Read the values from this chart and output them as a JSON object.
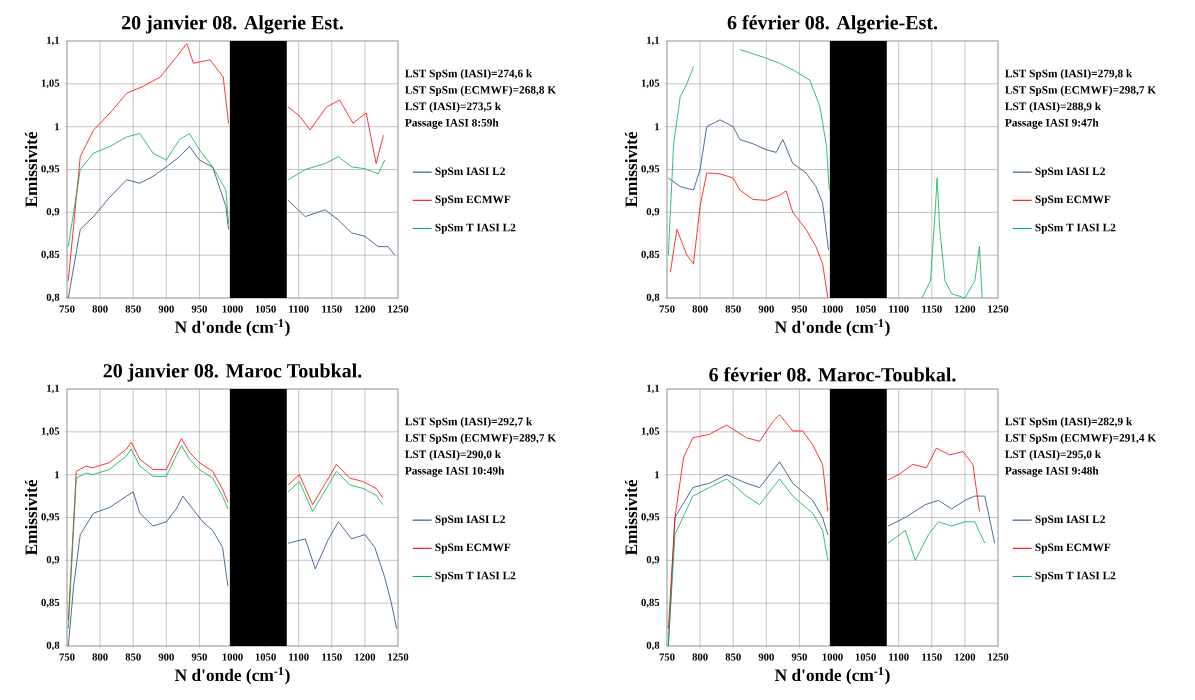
{
  "chart_data": [
    {
      "type": "line",
      "title": "20 janvier 08. Algerie Est.",
      "xlabel": "N d'onde (cm$^{-1}$)",
      "ylabel": "Emissivité",
      "xlim": [
        750,
        1250
      ],
      "ylim": [
        0.8,
        1.1
      ],
      "xticks": [
        750,
        800,
        850,
        900,
        950,
        1000,
        1050,
        1100,
        1150,
        1200,
        1250
      ],
      "yticks": [
        {
          "value": 0.8,
          "label": "0,8"
        },
        {
          "value": 0.85,
          "label": "0,85"
        },
        {
          "value": 0.9,
          "label": "0,9"
        },
        {
          "value": 0.95,
          "label": "0,95"
        },
        {
          "value": 1,
          "label": "1"
        },
        {
          "value": 1.05,
          "label": "1,05"
        },
        {
          "value": 1.1,
          "label": "1,1"
        }
      ],
      "grid": true,
      "legend": "right",
      "annotations": [
        "LST SpSm (IASI)=274,6 k",
        "LST SpSm (ECMWF)=268,8 K",
        "LST (IASI)=273,5 k",
        "Passage IASI 8:59h"
      ],
      "bands": [
        {
          "axis": "x",
          "from": 996,
          "to": 1082,
          "color": "#000000"
        }
      ],
      "series": [
        {
          "name": "SpSm IASI L2",
          "color": "#1f497d",
          "x": [
            752,
            770,
            790,
            815,
            840,
            860,
            880,
            900,
            920,
            935,
            950,
            970,
            990,
            994,
            1040,
            1084,
            1110,
            1140,
            1160,
            1180,
            1200,
            1220,
            1235,
            1245
          ],
          "values": [
            0.8,
            0.88,
            0.895,
            0.918,
            0.938,
            0.934,
            0.942,
            0.953,
            0.965,
            0.977,
            0.961,
            0.953,
            0.907,
            0.88,
            null,
            0.914,
            0.895,
            0.903,
            0.891,
            0.876,
            0.872,
            0.86,
            0.86,
            0.85
          ]
        },
        {
          "name": "SpSm ECMWF",
          "color": "#ff0000",
          "x": [
            752,
            770,
            790,
            815,
            840,
            865,
            891,
            916,
            931,
            941,
            966,
            986,
            994,
            1040,
            1084,
            1102,
            1117,
            1142,
            1162,
            1182,
            1202,
            1217,
            1228
          ],
          "values": [
            0.82,
            0.965,
            0.996,
            1.016,
            1.039,
            1.047,
            1.058,
            1.082,
            1.097,
            1.074,
            1.078,
            1.058,
            1.004,
            null,
            1.023,
            1.012,
            0.996,
            1.023,
            1.031,
            1.004,
            1.016,
            0.957,
            0.99
          ]
        },
        {
          "name": "SpSm T IASI L2",
          "color": "#00b050",
          "x": [
            752,
            770,
            790,
            815,
            840,
            860,
            880,
            900,
            920,
            935,
            950,
            970,
            990,
            994,
            1040,
            1084,
            1110,
            1140,
            1160,
            1180,
            1200,
            1220,
            1230
          ],
          "values": [
            0.86,
            0.95,
            0.969,
            0.977,
            0.988,
            0.992,
            0.969,
            0.961,
            0.985,
            0.992,
            0.973,
            0.953,
            0.926,
            0.887,
            null,
            0.938,
            0.95,
            0.957,
            0.965,
            0.953,
            0.951,
            0.945,
            0.961
          ]
        }
      ]
    },
    {
      "type": "line",
      "title": "6 février 08. Algerie-Est.",
      "xlabel": "N d'onde (cm$^{-1}$)",
      "ylabel": "Emissivité",
      "xlim": [
        750,
        1250
      ],
      "ylim": [
        0.8,
        1.1
      ],
      "xticks": [
        750,
        800,
        850,
        900,
        950,
        1000,
        1050,
        1100,
        1150,
        1200,
        1250
      ],
      "yticks": [
        {
          "value": 0.8,
          "label": "0,8"
        },
        {
          "value": 0.85,
          "label": "0,85"
        },
        {
          "value": 0.9,
          "label": "0,9"
        },
        {
          "value": 0.95,
          "label": "0,95"
        },
        {
          "value": 1,
          "label": "1"
        },
        {
          "value": 1.05,
          "label": "1,05"
        },
        {
          "value": 1.1,
          "label": "1,1"
        }
      ],
      "grid": true,
      "legend": "right",
      "annotations": [
        "LST SpSm (IASI)=279,8 k",
        "LST SpSm (ECMWF)=298,7 K",
        "LST (IASI)=288,9 k",
        "Passage IASI 9:47h"
      ],
      "bands": [
        {
          "axis": "x",
          "from": 996,
          "to": 1082,
          "color": "#000000"
        }
      ],
      "series": [
        {
          "name": "SpSm IASI L2",
          "color": "#1f497d",
          "x": [
            752,
            770,
            790,
            800,
            810,
            830,
            850,
            860,
            880,
            900,
            915,
            925,
            940,
            960,
            975,
            985,
            994
          ],
          "values": [
            0.94,
            0.93,
            0.926,
            0.95,
            1.0,
            1.008,
            1.0,
            0.985,
            0.98,
            0.973,
            0.97,
            0.985,
            0.957,
            0.946,
            0.93,
            0.911,
            0.856
          ]
        },
        {
          "name": "SpSm ECMWF",
          "color": "#ff0000",
          "x": [
            755,
            765,
            780,
            790,
            800,
            810,
            830,
            850,
            860,
            880,
            900,
            920,
            930,
            940,
            960,
            975,
            985,
            993
          ],
          "values": [
            0.83,
            0.88,
            0.85,
            0.84,
            0.907,
            0.946,
            0.945,
            0.94,
            0.926,
            0.915,
            0.914,
            0.92,
            0.925,
            0.9,
            0.88,
            0.86,
            0.84,
            0.8
          ]
        },
        {
          "name": "SpSm T IASI L2",
          "color": "#00b050",
          "x": [
            752,
            760,
            770,
            780,
            790,
            800,
            810,
            830,
            850,
            860,
            880,
            900,
            920,
            941,
            966,
            981,
            991,
            995,
            1040,
            1135,
            1148,
            1155,
            1158,
            1162,
            1170,
            1180,
            1200,
            1215,
            1222,
            1226
          ],
          "values": [
            0.85,
            0.98,
            1.035,
            1.05,
            1.07,
            null,
            null,
            null,
            null,
            1.09,
            1.085,
            1.08,
            1.074,
            1.066,
            1.054,
            1.023,
            0.977,
            0.926,
            null,
            0.8,
            0.82,
            0.9,
            0.94,
            0.88,
            0.82,
            0.805,
            0.8,
            0.82,
            0.86,
            0.8
          ]
        }
      ]
    },
    {
      "type": "line",
      "title": "20 janvier 08. Maroc Toubkal.",
      "xlabel": "N d'onde (cm$^{-1}$)",
      "ylabel": "Emissivité",
      "xlim": [
        750,
        1250
      ],
      "ylim": [
        0.8,
        1.1
      ],
      "xticks": [
        750,
        800,
        850,
        900,
        950,
        1000,
        1050,
        1100,
        1150,
        1200,
        1250
      ],
      "yticks": [
        {
          "value": 0.8,
          "label": "0,8"
        },
        {
          "value": 0.85,
          "label": "0,85"
        },
        {
          "value": 0.9,
          "label": "0,9"
        },
        {
          "value": 0.95,
          "label": "0,95"
        },
        {
          "value": 1,
          "label": "1"
        },
        {
          "value": 1.05,
          "label": "1,05"
        },
        {
          "value": 1.1,
          "label": "1,1"
        }
      ],
      "grid": true,
      "legend": "right",
      "annotations": [
        "LST SpSm (IASI)=292,7 k",
        "LST SpSm (ECMWF)=289,7 K",
        "LST (IASI)=290,0 k",
        "Passage IASI 10:49h"
      ],
      "bands": [
        {
          "axis": "x",
          "from": 996,
          "to": 1082,
          "color": "#000000"
        }
      ],
      "series": [
        {
          "name": "SpSm IASI L2",
          "color": "#1f497d",
          "x": [
            752,
            760,
            770,
            790,
            815,
            840,
            850,
            860,
            880,
            900,
            915,
            925,
            940,
            955,
            970,
            985,
            993,
            1040,
            1084,
            1110,
            1125,
            1145,
            1160,
            1180,
            1200,
            1215,
            1230,
            1240,
            1248
          ],
          "values": [
            0.8,
            0.87,
            0.93,
            0.955,
            0.962,
            0.975,
            0.98,
            0.955,
            0.94,
            0.945,
            0.96,
            0.975,
            0.96,
            0.945,
            0.935,
            0.915,
            0.87,
            null,
            0.92,
            0.925,
            0.89,
            0.925,
            0.945,
            0.925,
            0.93,
            0.915,
            0.88,
            0.85,
            0.82
          ]
        },
        {
          "name": "SpSm ECMWF",
          "color": "#ff0000",
          "x": [
            752,
            764,
            779,
            789,
            814,
            840,
            847,
            860,
            880,
            900,
            915,
            923,
            935,
            950,
            970,
            985,
            993,
            1040,
            1084,
            1101,
            1121,
            1142,
            1157,
            1177,
            1197,
            1217,
            1227
          ],
          "values": [
            0.83,
            1.004,
            1.01,
            1.008,
            1.014,
            1.03,
            1.038,
            1.018,
            1.006,
            1.006,
            1.03,
            1.042,
            1.026,
            1.014,
            1.004,
            0.983,
            0.968,
            null,
            0.988,
            1.0,
            0.965,
            0.992,
            1.012,
            0.996,
            0.992,
            0.984,
            0.973
          ]
        },
        {
          "name": "SpSm T IASI L2",
          "color": "#00b050",
          "x": [
            752,
            764,
            779,
            789,
            814,
            840,
            847,
            860,
            880,
            900,
            915,
            923,
            935,
            950,
            970,
            985,
            993,
            1040,
            1084,
            1101,
            1121,
            1142,
            1157,
            1177,
            1197,
            1217,
            1227
          ],
          "values": [
            0.82,
            0.996,
            1.002,
            1.0,
            1.006,
            1.022,
            1.03,
            1.01,
            0.998,
            0.998,
            1.022,
            1.034,
            1.018,
            1.006,
            0.996,
            0.975,
            0.96,
            null,
            0.98,
            0.992,
            0.957,
            0.984,
            1.004,
            0.988,
            0.984,
            0.976,
            0.965
          ]
        }
      ]
    },
    {
      "type": "line",
      "title": "6 février 08. Maroc-Toubkal.",
      "xlabel": "N d'onde (cm$^{-1}$)",
      "ylabel": "Emissivité",
      "xlim": [
        750,
        1250
      ],
      "ylim": [
        0.8,
        1.1
      ],
      "xticks": [
        750,
        800,
        850,
        900,
        950,
        1000,
        1050,
        1100,
        1150,
        1200,
        1250
      ],
      "yticks": [
        {
          "value": 0.8,
          "label": "0,8"
        },
        {
          "value": 0.85,
          "label": "0,85"
        },
        {
          "value": 0.9,
          "label": "0,9"
        },
        {
          "value": 0.95,
          "label": "0,95"
        },
        {
          "value": 1,
          "label": "1"
        },
        {
          "value": 1.05,
          "label": "1,05"
        },
        {
          "value": 1.1,
          "label": "1,1"
        }
      ],
      "grid": true,
      "legend": "right",
      "annotations": [
        "LST SpSm (IASI)=282,9 k",
        "LST SpSm (ECMWF)=291,4 K",
        "LST (IASI)=295,0 k",
        "Passage IASI 9:48h"
      ],
      "bands": [
        {
          "axis": "x",
          "from": 996,
          "to": 1082,
          "color": "#000000"
        }
      ],
      "series": [
        {
          "name": "SpSm IASI L2",
          "color": "#1f497d",
          "x": [
            752,
            762,
            789,
            814,
            840,
            870,
            890,
            920,
            940,
            970,
            985,
            993,
            1040,
            1084,
            1110,
            1140,
            1160,
            1180,
            1200,
            1215,
            1230,
            1245
          ],
          "values": [
            0.8,
            0.95,
            0.985,
            0.99,
            1.0,
            0.99,
            0.985,
            1.015,
            0.99,
            0.97,
            0.95,
            0.93,
            null,
            0.94,
            0.95,
            0.965,
            0.97,
            0.96,
            0.97,
            0.975,
            0.975,
            0.92
          ]
        },
        {
          "name": "SpSm ECMWF",
          "color": "#ff0000",
          "x": [
            752,
            762,
            775,
            789,
            814,
            840,
            870,
            890,
            910,
            920,
            940,
            955,
            970,
            985,
            993,
            1040,
            1084,
            1100,
            1121,
            1142,
            1157,
            1177,
            1197,
            1212,
            1222
          ],
          "values": [
            0.82,
            0.95,
            1.02,
            1.043,
            1.047,
            1.058,
            1.043,
            1.039,
            1.062,
            1.07,
            1.051,
            1.051,
            1.035,
            1.012,
            0.957,
            null,
            0.994,
            1.0,
            1.012,
            1.008,
            1.031,
            1.023,
            1.027,
            1.012,
            0.957
          ]
        },
        {
          "name": "SpSm T IASI L2",
          "color": "#00b050",
          "x": [
            752,
            762,
            789,
            814,
            840,
            870,
            890,
            920,
            940,
            970,
            985,
            993,
            1040,
            1084,
            1110,
            1125,
            1145,
            1160,
            1180,
            1200,
            1215,
            1230
          ],
          "values": [
            0.8,
            0.93,
            0.975,
            0.985,
            0.995,
            0.975,
            0.965,
            0.995,
            0.975,
            0.955,
            0.935,
            0.9,
            null,
            0.92,
            0.935,
            0.9,
            0.93,
            0.945,
            0.94,
            0.945,
            0.945,
            0.92
          ]
        }
      ]
    }
  ]
}
